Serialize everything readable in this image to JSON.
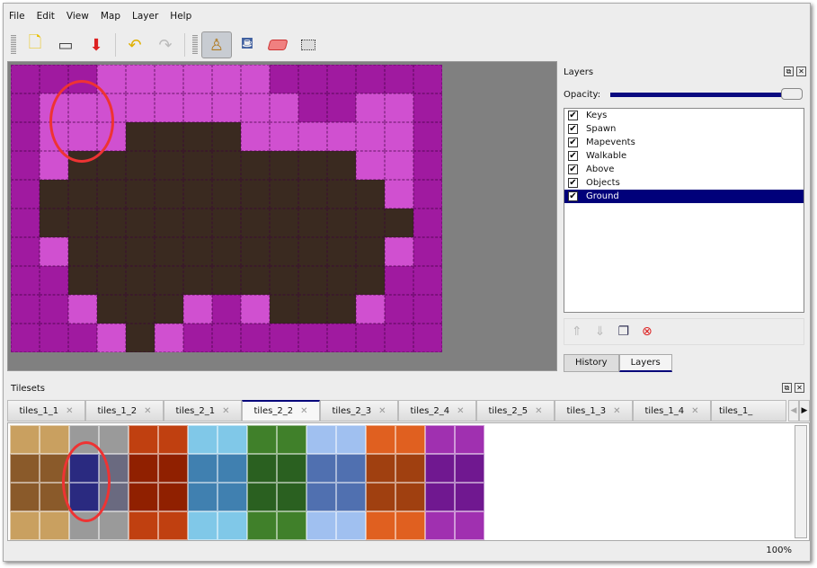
{
  "menu": [
    "File",
    "Edit",
    "View",
    "Map",
    "Layer",
    "Help"
  ],
  "toolbar": {
    "icons": [
      "new-icon",
      "open-icon",
      "save-icon",
      "undo-icon",
      "redo-icon",
      "stamp-brush-icon",
      "bucket-fill-icon",
      "eraser-icon",
      "rectangle-select-icon"
    ],
    "active": "stamp-brush-icon"
  },
  "layers_panel": {
    "title": "Layers",
    "opacity_label": "Opacity:",
    "opacity": 100,
    "items": [
      {
        "label": "Keys",
        "checked": true
      },
      {
        "label": "Spawn",
        "checked": true
      },
      {
        "label": "Mapevents",
        "checked": true
      },
      {
        "label": "Walkable",
        "checked": true
      },
      {
        "label": "Above",
        "checked": true
      },
      {
        "label": "Objects",
        "checked": true
      },
      {
        "label": "Ground",
        "checked": true,
        "selected": true
      }
    ],
    "tabs": [
      "History",
      "Layers"
    ],
    "active_tab": "Layers"
  },
  "tilesets": {
    "title": "Tilesets",
    "tabs": [
      "tiles_1_1",
      "tiles_1_2",
      "tiles_2_1",
      "tiles_2_2",
      "tiles_2_3",
      "tiles_2_4",
      "tiles_2_5",
      "tiles_1_3",
      "tiles_1_4",
      "tiles_1_"
    ],
    "active_tab": "tiles_2_2"
  },
  "status": {
    "zoom": "100%"
  },
  "colors": {
    "grass": "#a01aa0",
    "border": "#d050d0",
    "dirt": "#3a2a20",
    "selection": "#00007a"
  }
}
